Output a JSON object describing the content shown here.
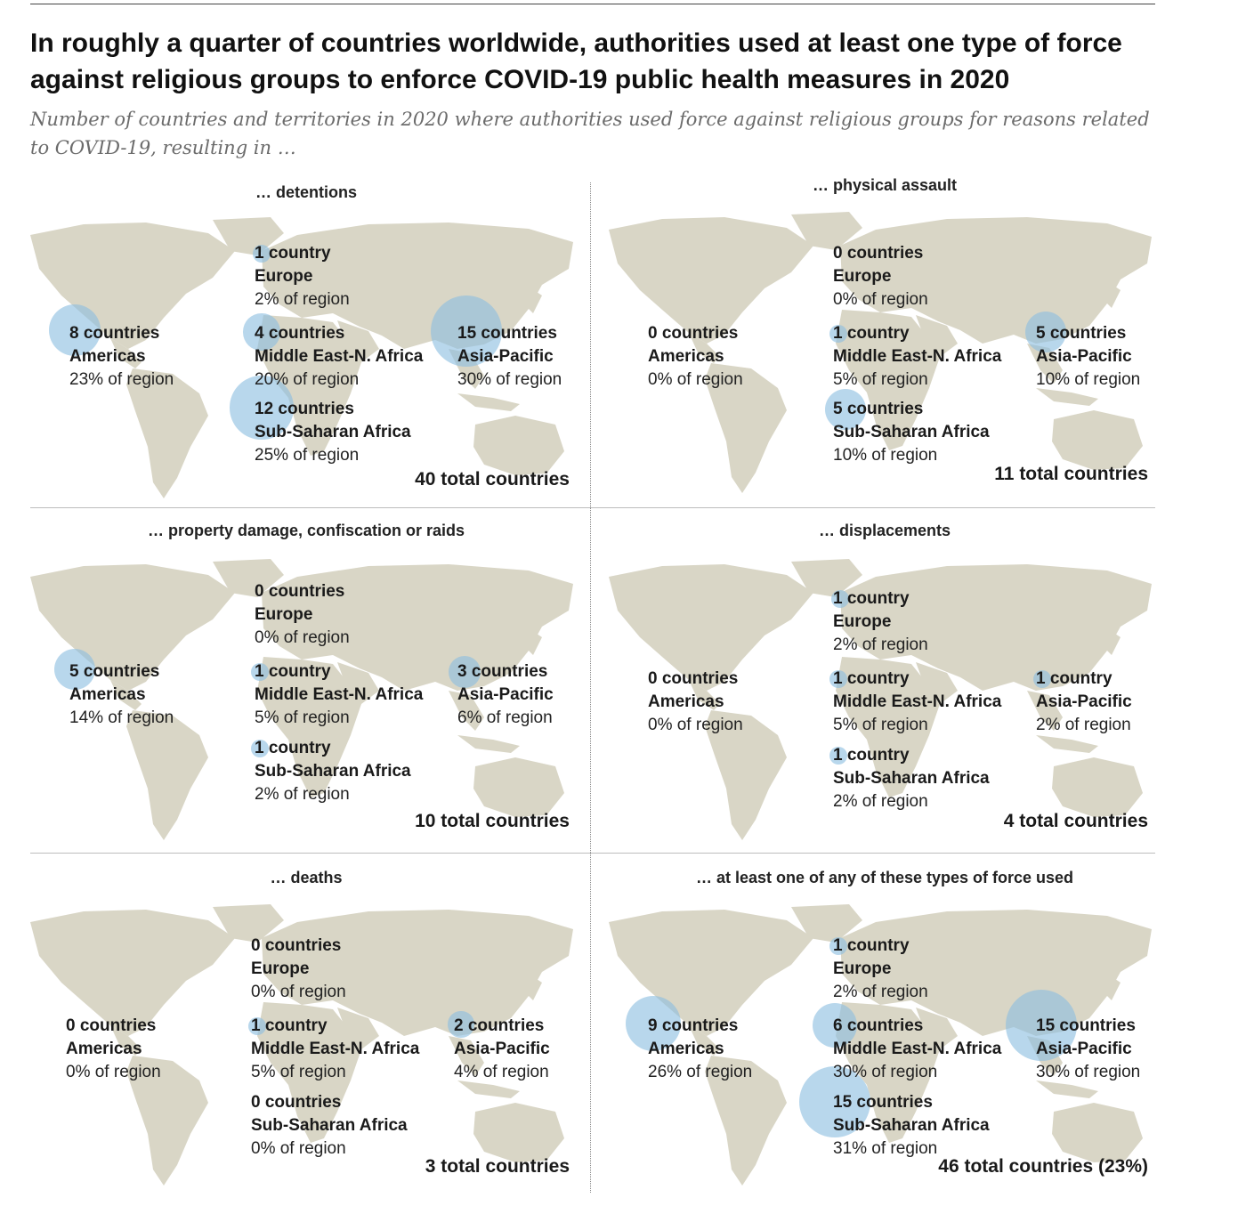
{
  "title": "In roughly a quarter of countries worldwide, authorities used at least one type of force against religious groups to enforce COVID-19 public health measures in 2020",
  "subtitle": "Number of countries and territories in 2020 where authorities used force against religious groups for reasons related to COVID-19, resulting in …",
  "colors": {
    "land": "#d9d6c6",
    "bubble": "#8cbee1",
    "text": "#1a1a1a",
    "subtitle": "#6b6b6b"
  },
  "chart_data": [
    {
      "type": "bubble-map",
      "title": "… detentions",
      "total": "40 total countries",
      "regions": [
        {
          "count": "1 country",
          "region": "Europe",
          "pct": "2% of region",
          "value": 1
        },
        {
          "count": "8 countries",
          "region": "Americas",
          "pct": "23% of region",
          "value": 8
        },
        {
          "count": "4 countries",
          "region": "Middle East-N. Africa",
          "pct": "20% of region",
          "value": 4
        },
        {
          "count": "15 countries",
          "region": "Asia-Pacific",
          "pct": "30% of region",
          "value": 15
        },
        {
          "count": "12 countries",
          "region": "Sub-Saharan Africa",
          "pct": "25% of region",
          "value": 12
        }
      ]
    },
    {
      "type": "bubble-map",
      "title": "… physical assault",
      "total": "11 total countries",
      "regions": [
        {
          "count": "0 countries",
          "region": "Europe",
          "pct": "0% of region",
          "value": 0
        },
        {
          "count": "0 countries",
          "region": "Americas",
          "pct": "0% of region",
          "value": 0
        },
        {
          "count": "1 country",
          "region": "Middle East-N. Africa",
          "pct": "5% of region",
          "value": 1
        },
        {
          "count": "5 countries",
          "region": "Asia-Pacific",
          "pct": "10% of region",
          "value": 5
        },
        {
          "count": "5 countries",
          "region": "Sub-Saharan Africa",
          "pct": "10% of region",
          "value": 5
        }
      ]
    },
    {
      "type": "bubble-map",
      "title": "… property damage, confiscation or raids",
      "total": "10 total countries",
      "regions": [
        {
          "count": "0 countries",
          "region": "Europe",
          "pct": "0% of region",
          "value": 0
        },
        {
          "count": "5 countries",
          "region": "Americas",
          "pct": "14% of region",
          "value": 5
        },
        {
          "count": "1 country",
          "region": "Middle East-N. Africa",
          "pct": "5% of region",
          "value": 1
        },
        {
          "count": "3 countries",
          "region": "Asia-Pacific",
          "pct": "6% of region",
          "value": 3
        },
        {
          "count": "1 country",
          "region": "Sub-Saharan Africa",
          "pct": "2% of region",
          "value": 1
        }
      ]
    },
    {
      "type": "bubble-map",
      "title": "… displacements",
      "total": "4 total countries",
      "regions": [
        {
          "count": "1 country",
          "region": "Europe",
          "pct": "2% of region",
          "value": 1
        },
        {
          "count": "0 countries",
          "region": "Americas",
          "pct": "0% of region",
          "value": 0
        },
        {
          "count": "1 country",
          "region": "Middle East-N. Africa",
          "pct": "5% of region",
          "value": 1
        },
        {
          "count": "1 country",
          "region": "Asia-Pacific",
          "pct": "2% of region",
          "value": 1
        },
        {
          "count": "1 country",
          "region": "Sub-Saharan Africa",
          "pct": "2% of region",
          "value": 1
        }
      ]
    },
    {
      "type": "bubble-map",
      "title": "… deaths",
      "total": "3 total countries",
      "regions": [
        {
          "count": "0 countries",
          "region": "Europe",
          "pct": "0% of region",
          "value": 0
        },
        {
          "count": "0 countries",
          "region": "Americas",
          "pct": "0% of region",
          "value": 0
        },
        {
          "count": "1 country",
          "region": "Middle East-N. Africa",
          "pct": "5% of region",
          "value": 1
        },
        {
          "count": "2 countries",
          "region": "Asia-Pacific",
          "pct": "4% of region",
          "value": 2
        },
        {
          "count": "0 countries",
          "region": "Sub-Saharan Africa",
          "pct": "0% of region",
          "value": 0
        }
      ]
    },
    {
      "type": "bubble-map",
      "title": "… at least one of any of these types of force used",
      "total": "46 total countries (23%)",
      "regions": [
        {
          "count": "1 country",
          "region": "Europe",
          "pct": "2% of region",
          "value": 1
        },
        {
          "count": "9 countries",
          "region": "Americas",
          "pct": "26% of region",
          "value": 9
        },
        {
          "count": "6 countries",
          "region": "Middle East-N. Africa",
          "pct": "30% of region",
          "value": 6
        },
        {
          "count": "15 countries",
          "region": "Asia-Pacific",
          "pct": "30% of region",
          "value": 15
        },
        {
          "count": "15 countries",
          "region": "Sub-Saharan Africa",
          "pct": "31% of region",
          "value": 15
        }
      ]
    }
  ]
}
